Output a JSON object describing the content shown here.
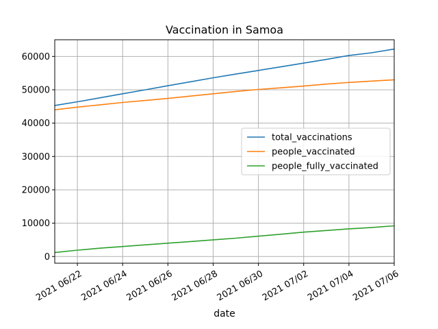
{
  "chart_data": {
    "type": "line",
    "title": "Vaccination in Samoa",
    "xlabel": "date",
    "ylabel": "",
    "x": [
      "2021-06-21",
      "2021-06-22",
      "2021-06-23",
      "2021-06-24",
      "2021-06-25",
      "2021-06-26",
      "2021-06-27",
      "2021-06-28",
      "2021-06-29",
      "2021-06-30",
      "2021-07-01",
      "2021-07-02",
      "2021-07-03",
      "2021-07-04",
      "2021-07-05",
      "2021-07-06"
    ],
    "xlim": [
      "2021-06-21",
      "2021-07-06"
    ],
    "xticks": [
      {
        "date": "2021-06-22",
        "label": "2021 06/22"
      },
      {
        "date": "2021-06-24",
        "label": "2021 06/24"
      },
      {
        "date": "2021-06-26",
        "label": "2021 06/26"
      },
      {
        "date": "2021-06-28",
        "label": "2021 06/28"
      },
      {
        "date": "2021-06-30",
        "label": "2021 06/30"
      },
      {
        "date": "2021-07-02",
        "label": "2021 07/02"
      },
      {
        "date": "2021-07-04",
        "label": "2021 07/04"
      },
      {
        "date": "2021-07-06",
        "label": "2021 07/06"
      }
    ],
    "ylim": [
      -2000,
      65000
    ],
    "yticks": [
      0,
      10000,
      20000,
      30000,
      40000,
      50000,
      60000
    ],
    "grid": true,
    "legend_position": "center-right",
    "series": [
      {
        "name": "total_vaccinations",
        "color": "#1f77b4",
        "values": [
          45300,
          46400,
          47600,
          48800,
          50000,
          51200,
          52400,
          53600,
          54700,
          55800,
          56900,
          58000,
          59100,
          60300,
          61100,
          62200
        ]
      },
      {
        "name": "people_vaccinated",
        "color": "#ff7f0e",
        "values": [
          44000,
          44800,
          45500,
          46200,
          46800,
          47400,
          48100,
          48800,
          49500,
          50100,
          50600,
          51100,
          51700,
          52200,
          52600,
          53000
        ]
      },
      {
        "name": "people_fully_vaccinated",
        "color": "#2ca02c",
        "values": [
          1200,
          1900,
          2500,
          3000,
          3500,
          4000,
          4500,
          5000,
          5500,
          6100,
          6700,
          7300,
          7800,
          8300,
          8700,
          9200
        ]
      }
    ]
  }
}
